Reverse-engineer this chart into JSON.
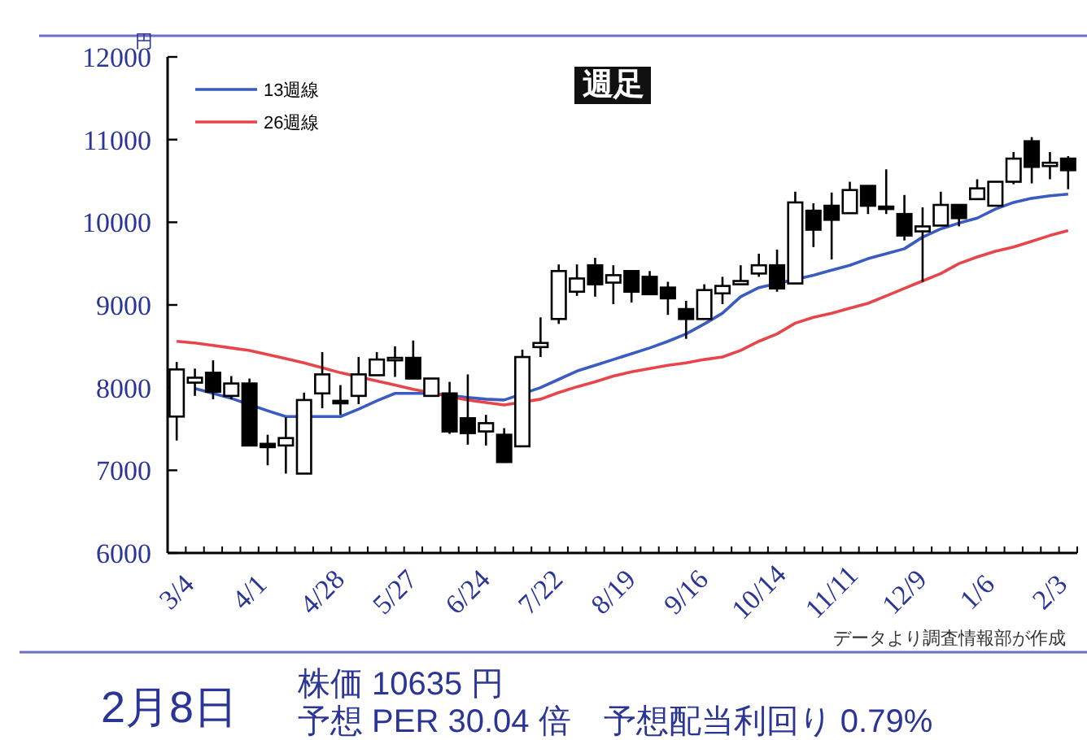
{
  "chart_data": {
    "type": "candlestick",
    "title": "週足",
    "ylabel": "円",
    "categories": [
      "3/4",
      null,
      null,
      null,
      "4/1",
      null,
      null,
      null,
      "4/28",
      null,
      null,
      null,
      "5/27",
      null,
      null,
      null,
      "6/24",
      null,
      null,
      null,
      "7/22",
      null,
      null,
      null,
      "8/19",
      null,
      null,
      null,
      "9/16",
      null,
      null,
      null,
      "10/14",
      null,
      null,
      null,
      "11/11",
      null,
      null,
      null,
      "12/9",
      null,
      null,
      null,
      "1/6",
      null,
      null,
      null,
      "2/3",
      null
    ],
    "ohlc": [
      [
        7650,
        8310,
        7360,
        8220
      ],
      [
        8060,
        8230,
        7900,
        8120
      ],
      [
        8180,
        8330,
        7860,
        7950
      ],
      [
        7900,
        8140,
        7860,
        8050
      ],
      [
        8050,
        8110,
        7300,
        7300
      ],
      [
        7320,
        7430,
        7060,
        7280
      ],
      [
        7300,
        7640,
        6960,
        7390
      ],
      [
        6960,
        7940,
        6960,
        7850
      ],
      [
        7930,
        8430,
        7750,
        8160
      ],
      [
        7840,
        8030,
        7670,
        7810
      ],
      [
        7900,
        8370,
        7800,
        8160
      ],
      [
        8150,
        8430,
        8150,
        8340
      ],
      [
        8330,
        8500,
        8130,
        8360
      ],
      [
        8360,
        8570,
        8110,
        8110
      ],
      [
        7900,
        8110,
        7900,
        8110
      ],
      [
        7930,
        8070,
        7440,
        7470
      ],
      [
        7630,
        8160,
        7310,
        7450
      ],
      [
        7470,
        7670,
        7300,
        7570
      ],
      [
        7430,
        7510,
        7100,
        7100
      ],
      [
        7290,
        8460,
        7290,
        8370
      ],
      [
        8490,
        8850,
        8370,
        8540
      ],
      [
        8830,
        9490,
        8770,
        9410
      ],
      [
        9160,
        9490,
        9110,
        9320
      ],
      [
        9480,
        9570,
        9100,
        9250
      ],
      [
        9270,
        9480,
        9010,
        9360
      ],
      [
        9410,
        9410,
        9030,
        9160
      ],
      [
        9340,
        9410,
        9130,
        9130
      ],
      [
        9210,
        9280,
        8880,
        9080
      ],
      [
        8950,
        9050,
        8590,
        8830
      ],
      [
        8830,
        9250,
        8830,
        9180
      ],
      [
        9140,
        9340,
        9010,
        9230
      ],
      [
        9250,
        9480,
        9250,
        9290
      ],
      [
        9380,
        9620,
        9340,
        9480
      ],
      [
        9480,
        9670,
        9160,
        9200
      ],
      [
        9260,
        10370,
        9260,
        10240
      ],
      [
        10140,
        10230,
        9700,
        9910
      ],
      [
        10200,
        10360,
        9550,
        10030
      ],
      [
        10110,
        10490,
        10110,
        10390
      ],
      [
        10440,
        10440,
        10100,
        10200
      ],
      [
        10190,
        10640,
        10100,
        10160
      ],
      [
        10100,
        10330,
        9780,
        9840
      ],
      [
        9890,
        10180,
        9280,
        9950
      ],
      [
        9960,
        10370,
        9960,
        10210
      ],
      [
        10210,
        10210,
        9950,
        10050
      ],
      [
        10280,
        10520,
        10280,
        10410
      ],
      [
        10200,
        10490,
        10200,
        10490
      ],
      [
        10490,
        10850,
        10460,
        10770
      ],
      [
        10980,
        11030,
        10470,
        10670
      ],
      [
        10680,
        10850,
        10520,
        10720
      ],
      [
        10770,
        10800,
        10400,
        10630
      ]
    ],
    "series": [
      {
        "name": "13週線",
        "type": "line",
        "color": "#3a5bc0",
        "values": [
          null,
          7990,
          7930,
          7870,
          null,
          7720,
          7650,
          null,
          7650,
          7650,
          7740,
          7840,
          7930,
          7930,
          7930,
          null,
          7880,
          7860,
          7850,
          null,
          8000,
          8100,
          8200,
          8270,
          8340,
          8410,
          8480,
          8560,
          8650,
          8770,
          8900,
          9100,
          9210,
          null,
          null,
          9360,
          9420,
          9480,
          9560,
          9620,
          9680,
          9820,
          9920,
          9990,
          10050,
          10160,
          10240,
          10290,
          10320,
          10340
        ]
      },
      {
        "name": "26週線",
        "type": "line",
        "color": "#e8454a",
        "values": [
          8560,
          8540,
          8510,
          8480,
          8450,
          8400,
          8350,
          8300,
          8240,
          8180,
          null,
          8080,
          8030,
          7980,
          null,
          null,
          7850,
          7820,
          7790,
          null,
          7860,
          7940,
          8010,
          8070,
          8140,
          8190,
          8230,
          8270,
          8300,
          8340,
          8370,
          8450,
          8560,
          8650,
          8780,
          8850,
          8900,
          8960,
          9020,
          9110,
          9200,
          9290,
          9380,
          9500,
          9580,
          9650,
          9700,
          9770,
          9840,
          9900
        ]
      }
    ],
    "ylim": [
      6000,
      12000
    ],
    "yticks": [
      6000,
      7000,
      8000,
      9000,
      10000,
      11000,
      12000
    ],
    "grid": false,
    "legend": "top left",
    "annotations": [
      "データより調査情報部が作成",
      "2月8日",
      "株価 10635 円",
      "予想 PER 30.04 倍　予想配当利回り 0.79%"
    ]
  }
}
